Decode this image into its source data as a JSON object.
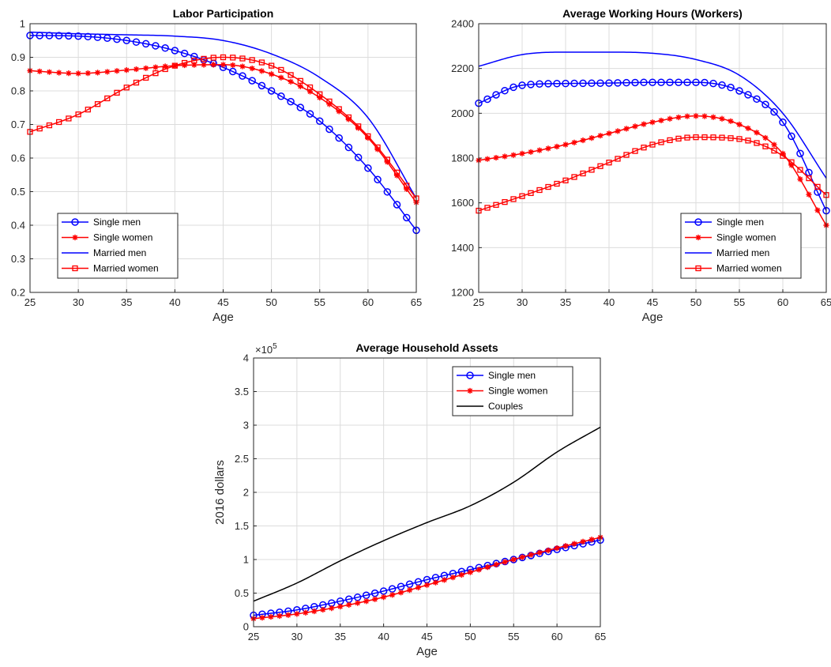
{
  "chart_data": [
    {
      "type": "line",
      "title": "Labor Participation",
      "xlabel": "Age",
      "ylabel": "",
      "xlim": [
        25,
        65
      ],
      "ylim": [
        0.2,
        1
      ],
      "xticks": [
        "25",
        "30",
        "35",
        "40",
        "45",
        "50",
        "55",
        "60",
        "65"
      ],
      "yticks": [
        "0.2",
        "0.3",
        "0.4",
        "0.5",
        "0.6",
        "0.7",
        "0.8",
        "0.9",
        "1"
      ],
      "grid": true,
      "legend_position": "bottom-left",
      "series": [
        {
          "name": "Single men",
          "color": "#0000ff",
          "marker": "circle",
          "x": [
            25,
            30,
            35,
            40,
            45,
            50,
            55,
            60,
            65
          ],
          "y": [
            0.965,
            0.963,
            0.95,
            0.92,
            0.87,
            0.8,
            0.71,
            0.57,
            0.385
          ]
        },
        {
          "name": "Single women",
          "color": "#ff0000",
          "marker": "star",
          "x": [
            25,
            30,
            35,
            40,
            45,
            50,
            55,
            60,
            65
          ],
          "y": [
            0.86,
            0.852,
            0.862,
            0.875,
            0.878,
            0.85,
            0.78,
            0.66,
            0.468
          ]
        },
        {
          "name": "Married men",
          "color": "#0000ff",
          "marker": "none",
          "x": [
            25,
            30,
            35,
            40,
            45,
            50,
            55,
            60,
            65
          ],
          "y": [
            0.975,
            0.97,
            0.967,
            0.963,
            0.95,
            0.91,
            0.84,
            0.72,
            0.48
          ]
        },
        {
          "name": "Married women",
          "color": "#ff0000",
          "marker": "square",
          "x": [
            25,
            30,
            35,
            40,
            45,
            50,
            55,
            60,
            65
          ],
          "y": [
            0.678,
            0.73,
            0.81,
            0.875,
            0.9,
            0.875,
            0.79,
            0.665,
            0.48
          ]
        }
      ]
    },
    {
      "type": "line",
      "title": "Average Working Hours (Workers)",
      "xlabel": "Age",
      "ylabel": "",
      "xlim": [
        25,
        65
      ],
      "ylim": [
        1200,
        2400
      ],
      "xticks": [
        "25",
        "30",
        "35",
        "40",
        "45",
        "50",
        "55",
        "60",
        "65"
      ],
      "yticks": [
        "1200",
        "1400",
        "1600",
        "1800",
        "2000",
        "2200",
        "2400"
      ],
      "grid": true,
      "legend_position": "bottom-right",
      "series": [
        {
          "name": "Single men",
          "color": "#0000ff",
          "marker": "circle",
          "x": [
            25,
            30,
            35,
            40,
            45,
            50,
            55,
            60,
            65
          ],
          "y": [
            2045,
            2125,
            2133,
            2135,
            2138,
            2138,
            2100,
            1960,
            1565
          ]
        },
        {
          "name": "Single women",
          "color": "#ff0000",
          "marker": "star",
          "x": [
            25,
            30,
            35,
            40,
            45,
            50,
            55,
            60,
            65
          ],
          "y": [
            1790,
            1820,
            1860,
            1910,
            1960,
            1988,
            1950,
            1820,
            1500
          ]
        },
        {
          "name": "Married men",
          "color": "#0000ff",
          "marker": "none",
          "x": [
            25,
            30,
            35,
            40,
            45,
            50,
            55,
            60,
            65
          ],
          "y": [
            2210,
            2262,
            2273,
            2273,
            2268,
            2240,
            2170,
            2000,
            1710
          ]
        },
        {
          "name": "Married women",
          "color": "#ff0000",
          "marker": "square",
          "x": [
            25,
            30,
            35,
            40,
            45,
            50,
            55,
            60,
            65
          ],
          "y": [
            1565,
            1630,
            1700,
            1780,
            1860,
            1893,
            1885,
            1810,
            1635
          ]
        }
      ]
    },
    {
      "type": "line",
      "title": "Average Household Assets",
      "xlabel": "Age",
      "ylabel": "2016 dollars",
      "y_exponent_label": "×10",
      "y_exponent": "5",
      "xlim": [
        25,
        65
      ],
      "ylim": [
        0,
        4
      ],
      "xticks": [
        "25",
        "30",
        "35",
        "40",
        "45",
        "50",
        "55",
        "60",
        "65"
      ],
      "yticks": [
        "0",
        "0.5",
        "1",
        "1.5",
        "2",
        "2.5",
        "3",
        "3.5",
        "4"
      ],
      "grid": true,
      "legend_position": "top-right",
      "series": [
        {
          "name": "Single men",
          "color": "#0000ff",
          "marker": "circle",
          "x": [
            25,
            30,
            35,
            40,
            45,
            50,
            55,
            60,
            65
          ],
          "y": [
            0.17,
            0.25,
            0.38,
            0.53,
            0.7,
            0.85,
            1.0,
            1.15,
            1.29
          ]
        },
        {
          "name": "Single women",
          "color": "#ff0000",
          "marker": "star",
          "x": [
            25,
            30,
            35,
            40,
            45,
            50,
            55,
            60,
            65
          ],
          "y": [
            0.12,
            0.19,
            0.3,
            0.44,
            0.62,
            0.81,
            1.0,
            1.17,
            1.33
          ]
        },
        {
          "name": "Couples",
          "color": "#000000",
          "marker": "none",
          "x": [
            25,
            30,
            35,
            40,
            45,
            50,
            55,
            60,
            65
          ],
          "y": [
            0.38,
            0.65,
            0.98,
            1.28,
            1.55,
            1.8,
            2.15,
            2.6,
            2.97
          ]
        }
      ]
    }
  ]
}
